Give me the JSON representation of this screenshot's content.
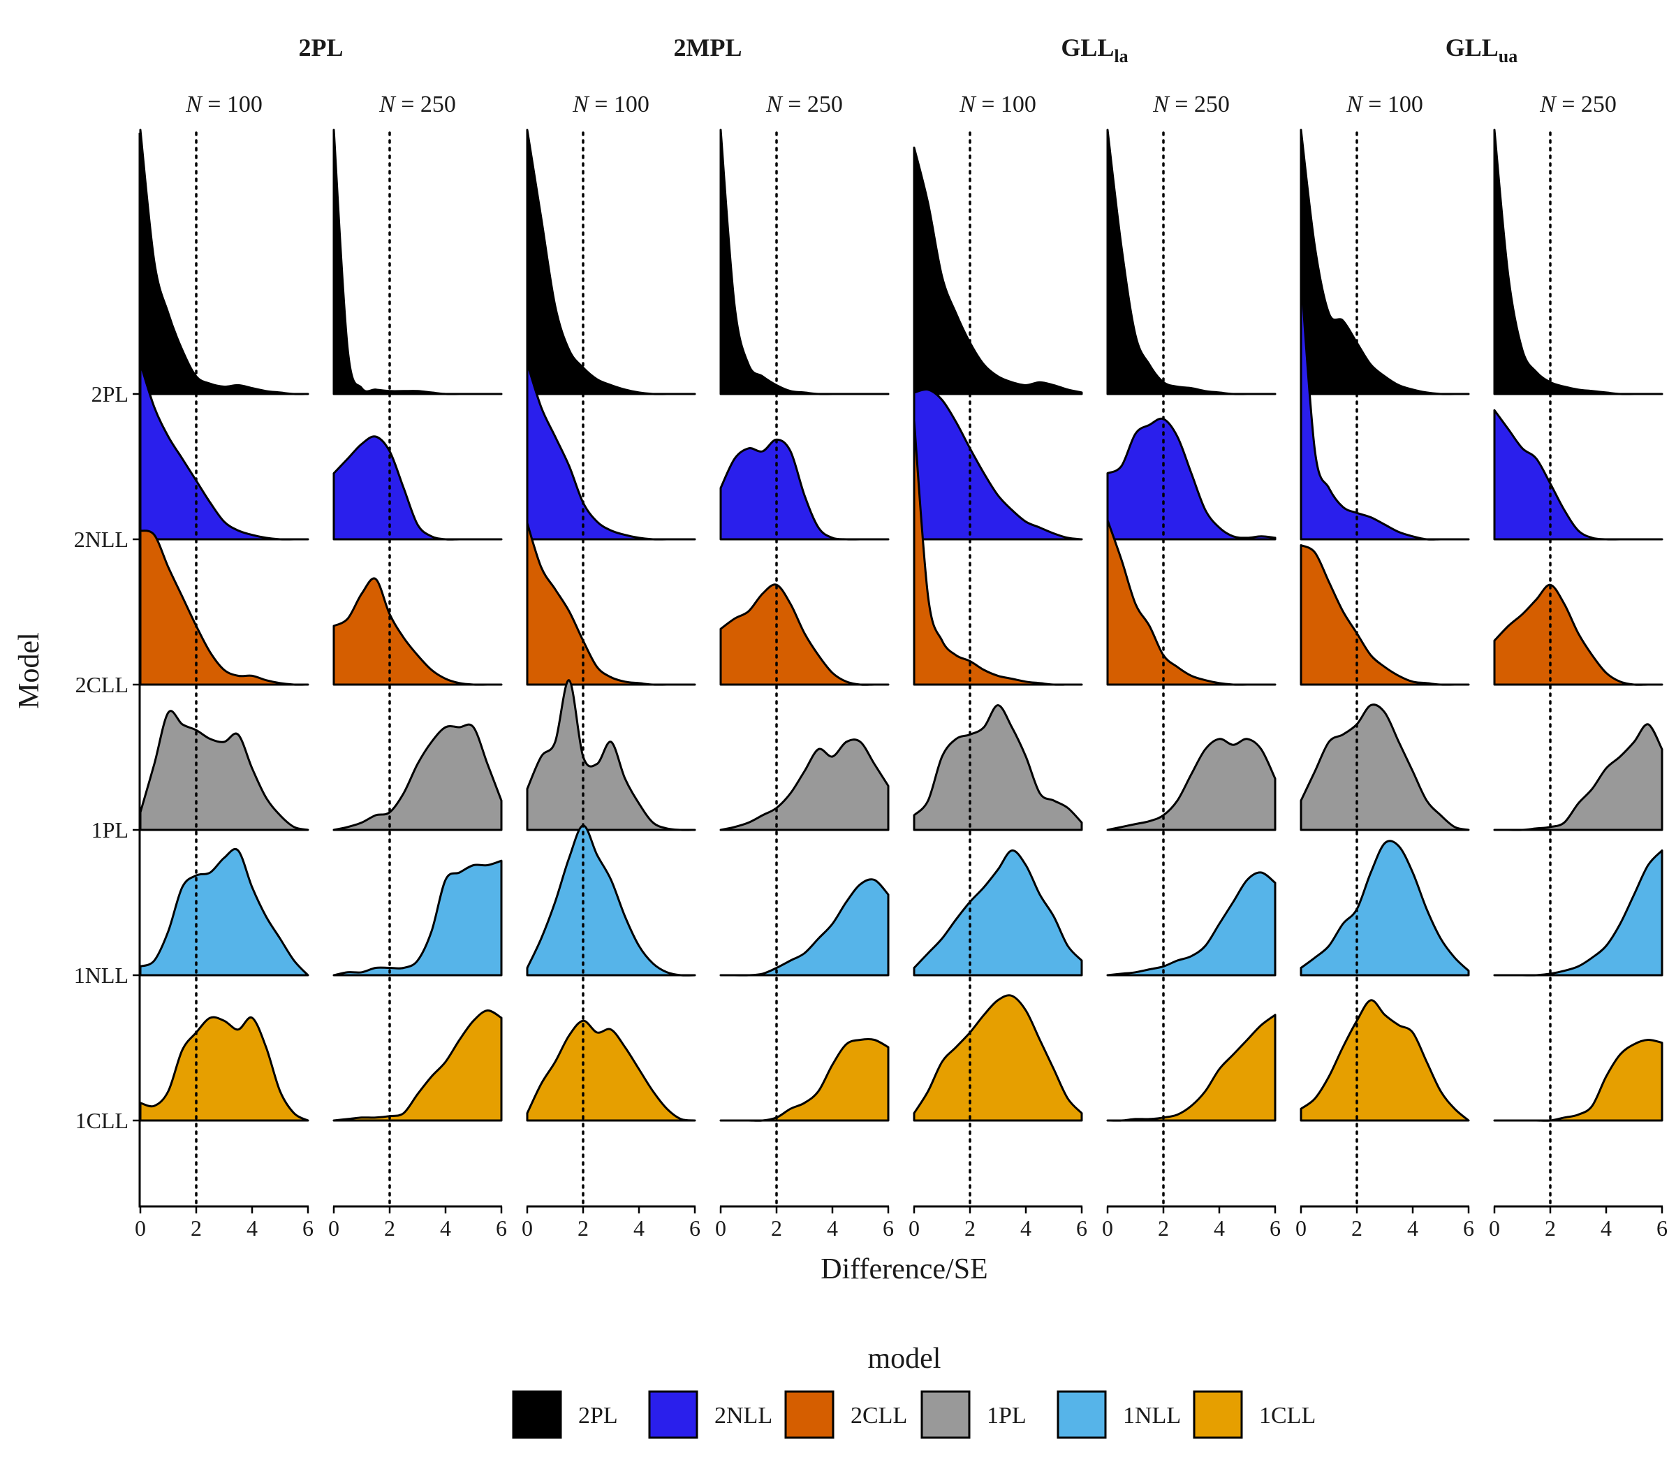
{
  "chart_data": {
    "type": "area",
    "subtype": "ridgeline density (faceted)",
    "xlabel": "Difference/SE",
    "ylabel": "Model",
    "xlim": [
      0,
      6
    ],
    "x_ticks": [
      "0",
      "2",
      "4",
      "6"
    ],
    "reference_line": {
      "x": 2,
      "style": "dotted"
    },
    "grid": false,
    "legend": {
      "title": "model",
      "placement": "bottom"
    },
    "facet_groups": [
      {
        "label": "2PL",
        "subscript": ""
      },
      {
        "label": "2MPL",
        "subscript": ""
      },
      {
        "label": "GLL",
        "subscript": "la"
      },
      {
        "label": "GLL",
        "subscript": "ua"
      }
    ],
    "sample_size_label_prefix": "N",
    "sample_size_label_sep": " = ",
    "sample_sizes": [
      "100",
      "250"
    ],
    "models": [
      {
        "name": "2PL",
        "color": "#000000"
      },
      {
        "name": "2NLL",
        "color": "#2a1fec"
      },
      {
        "name": "2CLL",
        "color": "#d55e00"
      },
      {
        "name": "1PL",
        "color": "#999999"
      },
      {
        "name": "1NLL",
        "color": "#56b4e9"
      },
      {
        "name": "1CLL",
        "color": "#e69f00"
      }
    ],
    "x_points": [
      0,
      0.5,
      1,
      1.5,
      2,
      2.5,
      3,
      3.5,
      4,
      4.5,
      5,
      5.5,
      6
    ],
    "densities_relative_height": [
      [
        [
          1.8,
          0.9,
          0.55,
          0.3,
          0.12,
          0.07,
          0.05,
          0.06,
          0.04,
          0.02,
          0.01,
          0,
          0
        ],
        [
          1.2,
          0.9,
          0.7,
          0.55,
          0.4,
          0.25,
          0.12,
          0.06,
          0.03,
          0.01,
          0,
          0,
          0
        ],
        [
          1.05,
          1.02,
          0.8,
          0.6,
          0.4,
          0.22,
          0.1,
          0.06,
          0.06,
          0.03,
          0.01,
          0,
          0
        ],
        [
          0.12,
          0.45,
          0.8,
          0.72,
          0.68,
          0.62,
          0.6,
          0.65,
          0.42,
          0.22,
          0.1,
          0.02,
          0
        ],
        [
          0.06,
          0.1,
          0.3,
          0.6,
          0.68,
          0.7,
          0.8,
          0.85,
          0.6,
          0.4,
          0.25,
          0.1,
          0
        ],
        [
          0.12,
          0.1,
          0.2,
          0.48,
          0.6,
          0.7,
          0.68,
          0.62,
          0.7,
          0.5,
          0.2,
          0.05,
          0
        ]
      ],
      [
        [
          1.8,
          0.3,
          0.04,
          0.03,
          0.02,
          0.02,
          0.02,
          0.01,
          0,
          0,
          0,
          0,
          0
        ],
        [
          0.45,
          0.55,
          0.65,
          0.7,
          0.6,
          0.35,
          0.1,
          0.02,
          0,
          0,
          0,
          0,
          0
        ],
        [
          0.4,
          0.45,
          0.62,
          0.72,
          0.48,
          0.32,
          0.2,
          0.1,
          0.04,
          0.01,
          0,
          0,
          0
        ],
        [
          0,
          0.02,
          0.05,
          0.1,
          0.12,
          0.25,
          0.45,
          0.6,
          0.7,
          0.7,
          0.7,
          0.45,
          0.2
        ],
        [
          0,
          0.02,
          0.02,
          0.05,
          0.05,
          0.05,
          0.1,
          0.3,
          0.65,
          0.7,
          0.75,
          0.75,
          0.78
        ],
        [
          0,
          0.01,
          0.02,
          0.02,
          0.03,
          0.05,
          0.18,
          0.3,
          0.4,
          0.55,
          0.68,
          0.75,
          0.7
        ]
      ],
      [
        [
          1.8,
          1.2,
          0.6,
          0.3,
          0.18,
          0.1,
          0.06,
          0.03,
          0.01,
          0,
          0,
          0,
          0
        ],
        [
          1.2,
          0.9,
          0.7,
          0.5,
          0.25,
          0.12,
          0.06,
          0.03,
          0.01,
          0,
          0,
          0,
          0
        ],
        [
          1.1,
          0.8,
          0.65,
          0.5,
          0.3,
          0.12,
          0.05,
          0.02,
          0.01,
          0,
          0,
          0,
          0
        ],
        [
          0.28,
          0.5,
          0.6,
          1.02,
          0.5,
          0.45,
          0.6,
          0.35,
          0.18,
          0.05,
          0.01,
          0,
          0
        ],
        [
          0.05,
          0.25,
          0.5,
          0.8,
          1.02,
          0.82,
          0.65,
          0.4,
          0.2,
          0.08,
          0.02,
          0,
          0
        ],
        [
          0.05,
          0.25,
          0.4,
          0.58,
          0.68,
          0.6,
          0.62,
          0.5,
          0.35,
          0.2,
          0.08,
          0.01,
          0
        ]
      ],
      [
        [
          1.8,
          0.6,
          0.2,
          0.12,
          0.06,
          0.02,
          0.01,
          0,
          0,
          0,
          0,
          0,
          0
        ],
        [
          0.35,
          0.55,
          0.62,
          0.6,
          0.68,
          0.6,
          0.3,
          0.08,
          0.01,
          0,
          0,
          0,
          0
        ],
        [
          0.38,
          0.45,
          0.5,
          0.62,
          0.68,
          0.55,
          0.35,
          0.2,
          0.08,
          0.02,
          0,
          0,
          0
        ],
        [
          0,
          0.02,
          0.05,
          0.1,
          0.15,
          0.25,
          0.4,
          0.55,
          0.5,
          0.6,
          0.6,
          0.45,
          0.3
        ],
        [
          0,
          0,
          0,
          0.01,
          0.05,
          0.1,
          0.15,
          0.25,
          0.35,
          0.5,
          0.62,
          0.65,
          0.55
        ],
        [
          0,
          0,
          0,
          0,
          0.02,
          0.08,
          0.12,
          0.2,
          0.38,
          0.52,
          0.55,
          0.55,
          0.5
        ]
      ],
      [
        [
          1.68,
          1.3,
          0.8,
          0.55,
          0.35,
          0.2,
          0.12,
          0.08,
          0.06,
          0.08,
          0.06,
          0.03,
          0.01
        ],
        [
          1.0,
          1.02,
          0.95,
          0.8,
          0.62,
          0.45,
          0.3,
          0.2,
          0.12,
          0.08,
          0.04,
          0.01,
          0
        ],
        [
          1.8,
          0.6,
          0.3,
          0.2,
          0.16,
          0.1,
          0.06,
          0.04,
          0.02,
          0.01,
          0,
          0,
          0
        ],
        [
          0.1,
          0.2,
          0.5,
          0.62,
          0.65,
          0.7,
          0.85,
          0.7,
          0.5,
          0.25,
          0.2,
          0.15,
          0.05
        ],
        [
          0.05,
          0.15,
          0.25,
          0.38,
          0.5,
          0.6,
          0.72,
          0.85,
          0.75,
          0.55,
          0.4,
          0.2,
          0.1
        ],
        [
          0.05,
          0.2,
          0.4,
          0.5,
          0.6,
          0.72,
          0.82,
          0.85,
          0.75,
          0.55,
          0.35,
          0.15,
          0.05
        ]
      ],
      [
        [
          1.8,
          1.0,
          0.4,
          0.2,
          0.08,
          0.05,
          0.04,
          0.02,
          0.01,
          0,
          0,
          0,
          0
        ],
        [
          0.45,
          0.5,
          0.72,
          0.78,
          0.82,
          0.7,
          0.45,
          0.2,
          0.08,
          0.02,
          0.01,
          0.02,
          0.01
        ],
        [
          1.12,
          0.85,
          0.55,
          0.4,
          0.2,
          0.12,
          0.06,
          0.03,
          0.01,
          0,
          0,
          0,
          0
        ],
        [
          0,
          0.02,
          0.04,
          0.06,
          0.1,
          0.2,
          0.38,
          0.55,
          0.62,
          0.58,
          0.62,
          0.55,
          0.35
        ],
        [
          0,
          0.01,
          0.02,
          0.04,
          0.06,
          0.1,
          0.13,
          0.2,
          0.35,
          0.5,
          0.65,
          0.7,
          0.63
        ],
        [
          0,
          0,
          0.01,
          0.01,
          0.02,
          0.04,
          0.1,
          0.2,
          0.35,
          0.45,
          0.55,
          0.65,
          0.72
        ]
      ],
      [
        [
          1.8,
          1.0,
          0.55,
          0.5,
          0.35,
          0.2,
          0.12,
          0.06,
          0.03,
          0.01,
          0,
          0,
          0
        ],
        [
          1.8,
          0.6,
          0.35,
          0.22,
          0.18,
          0.15,
          0.1,
          0.05,
          0.02,
          0,
          0,
          0,
          0
        ],
        [
          0.95,
          0.9,
          0.7,
          0.5,
          0.35,
          0.2,
          0.12,
          0.06,
          0.02,
          0.01,
          0,
          0,
          0
        ],
        [
          0.2,
          0.4,
          0.6,
          0.65,
          0.72,
          0.85,
          0.8,
          0.6,
          0.4,
          0.2,
          0.1,
          0.02,
          0
        ],
        [
          0.05,
          0.12,
          0.2,
          0.35,
          0.45,
          0.7,
          0.9,
          0.88,
          0.7,
          0.45,
          0.25,
          0.12,
          0.03
        ],
        [
          0.08,
          0.15,
          0.3,
          0.5,
          0.68,
          0.82,
          0.72,
          0.65,
          0.6,
          0.4,
          0.2,
          0.08,
          0
        ]
      ],
      [
        [
          1.8,
          0.8,
          0.3,
          0.15,
          0.08,
          0.05,
          0.03,
          0.02,
          0.01,
          0,
          0,
          0,
          0
        ],
        [
          0.88,
          0.75,
          0.62,
          0.55,
          0.38,
          0.2,
          0.06,
          0.01,
          0,
          0,
          0,
          0,
          0
        ],
        [
          0.3,
          0.4,
          0.48,
          0.58,
          0.68,
          0.55,
          0.35,
          0.2,
          0.08,
          0.02,
          0,
          0,
          0
        ],
        [
          0,
          0,
          0,
          0.01,
          0.02,
          0.05,
          0.18,
          0.28,
          0.42,
          0.5,
          0.6,
          0.72,
          0.55
        ],
        [
          0,
          0,
          0,
          0,
          0.01,
          0.03,
          0.06,
          0.12,
          0.2,
          0.35,
          0.55,
          0.75,
          0.85
        ],
        [
          0,
          0,
          0,
          0,
          0,
          0.02,
          0.04,
          0.1,
          0.3,
          0.45,
          0.52,
          0.55,
          0.53
        ]
      ]
    ]
  }
}
